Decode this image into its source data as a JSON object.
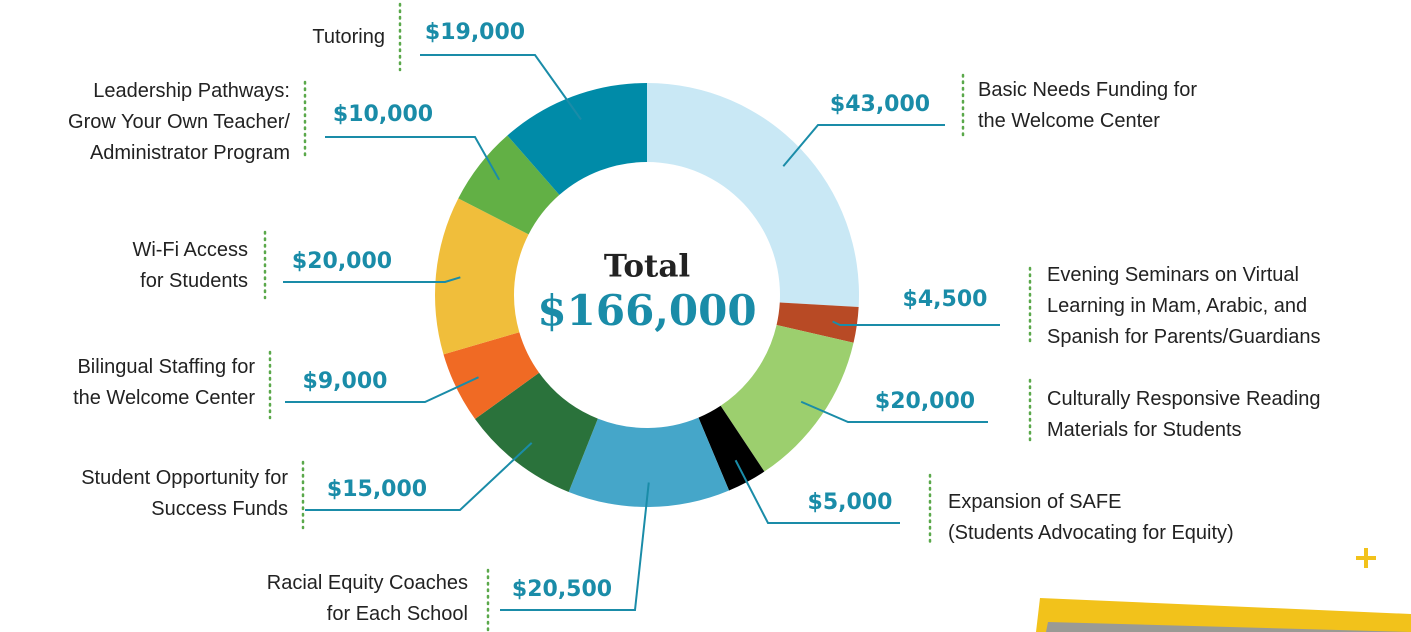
{
  "chart_data": {
    "type": "donut",
    "center_title": "Total",
    "total": {
      "value": 166000,
      "label": "$166,000"
    },
    "categories": [
      "Basic Needs Funding for\nthe Welcome Center",
      "Evening Seminars on Virtual\nLearning in Mam, Arabic, and\nSpanish for Parents/Guardians",
      "Culturally Responsive Reading\nMaterials for Students",
      "Expansion of SAFE\n(Students Advocating for Equity)",
      "Racial Equity Coaches\nfor Each School",
      "Student Opportunity for\nSuccess Funds",
      "Bilingual Staffing for\nthe Welcome Center",
      "Wi-Fi Access\nfor Students",
      "Leadership Pathways:\nGrow Your Own Teacher/\nAdministrator Program",
      "Tutoring"
    ],
    "values": [
      43000,
      4500,
      20000,
      5000,
      20500,
      15000,
      9000,
      20000,
      10000,
      19000
    ],
    "value_labels": [
      "$43,000",
      "$4,500",
      "$20,000",
      "$5,000",
      "$20,500",
      "$15,000",
      "$9,000",
      "$20,000",
      "$10,000",
      "$19,000"
    ],
    "colors": [
      "#c9e8f5",
      "#b84a25",
      "#9ccf6e",
      "#000000",
      "#45a6c9",
      "#2a723b",
      "#f06a24",
      "#f0be3b",
      "#62b045",
      "#008ba8"
    ]
  }
}
